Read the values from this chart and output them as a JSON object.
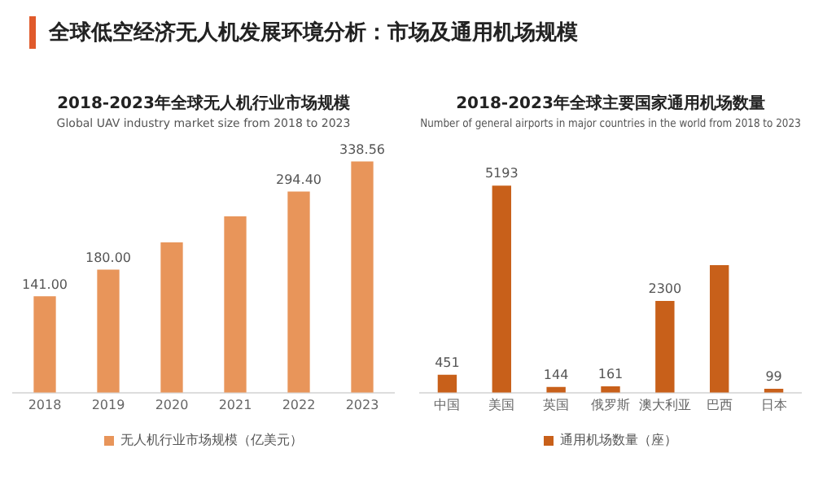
{
  "chart_data": [
    {
      "type": "bar",
      "title": "2018-2023年全球无人机行业市场规模",
      "subtitle": "Global UAV industry market size from 2018 to 2023",
      "annotations": [
        "全球低空经济无人机发展环境分析：市场及通用机场规模"
      ],
      "categories": [
        "2018",
        "2019",
        "2020",
        "2021",
        "2022",
        "2023"
      ],
      "series": [
        {
          "name": "无人机行业市场规模（亿美元）",
          "color": "#e8955a",
          "values": [
            141.0,
            180.0,
            220,
            258,
            294.4,
            338.56
          ],
          "value_labels": [
            "141.00",
            "180.00",
            null,
            null,
            "294.40",
            "338.56"
          ]
        }
      ],
      "legend": "bottom",
      "tick_labels": "x",
      "grid": false
    },
    {
      "type": "bar",
      "title": "2018-2023年全球主要国家通用机场数量",
      "subtitle": "Number of general airports in major countries in the world from 2018 to 2023",
      "categories": [
        "中国",
        "美国",
        "英国",
        "俄罗斯",
        "澳大利亚",
        "巴西",
        "日本"
      ],
      "series": [
        {
          "name": "通用机场数量（座）",
          "color": "#c8601a",
          "values": [
            451,
            5193,
            144,
            161,
            2300,
            3200,
            99
          ],
          "value_labels": [
            "451",
            "5193",
            "144",
            "161",
            "2300",
            null,
            "99"
          ]
        }
      ],
      "legend": "bottom",
      "tick_labels": "x",
      "grid": false
    }
  ]
}
